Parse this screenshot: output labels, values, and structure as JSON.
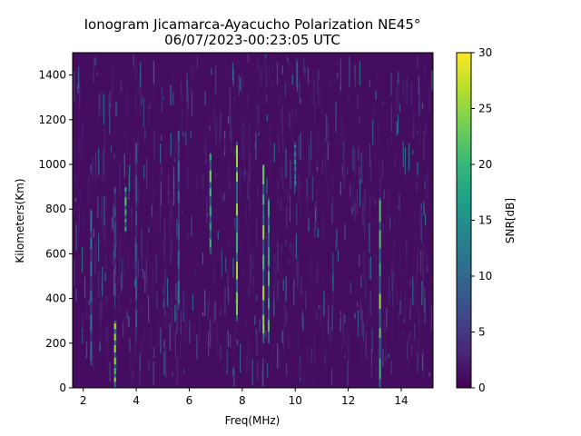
{
  "chart_data": {
    "type": "heatmap",
    "title": "Ionogram Jicamarca-Ayacucho Polarization NE45°",
    "subtitle": "06/07/2023-00:23:05 UTC",
    "xlabel": "Freq(MHz)",
    "ylabel": "Kilometers(Km)",
    "xlim": [
      1.6,
      15.2
    ],
    "ylim": [
      0,
      1500
    ],
    "x_ticks": [
      2,
      4,
      6,
      8,
      10,
      12,
      14
    ],
    "y_ticks": [
      0,
      200,
      400,
      600,
      800,
      1000,
      1200,
      1400
    ],
    "colormap": "viridis",
    "colorbar": {
      "label": "SNR[dB]",
      "range": [
        0,
        30
      ],
      "ticks": [
        0,
        5,
        10,
        15,
        20,
        25,
        30
      ]
    },
    "background_snr_db": 1,
    "streaks": [
      {
        "freq": 2.3,
        "from_km": 100,
        "to_km": 800,
        "snr_db": 13
      },
      {
        "freq": 3.2,
        "from_km": 0,
        "to_km": 300,
        "snr_db": 28
      },
      {
        "freq": 3.2,
        "from_km": 400,
        "to_km": 900,
        "snr_db": 8
      },
      {
        "freq": 3.6,
        "from_km": 700,
        "to_km": 900,
        "snr_db": 22
      },
      {
        "freq": 4.0,
        "from_km": 200,
        "to_km": 1100,
        "snr_db": 8
      },
      {
        "freq": 5.6,
        "from_km": 350,
        "to_km": 1150,
        "snr_db": 12
      },
      {
        "freq": 6.8,
        "from_km": 600,
        "to_km": 1050,
        "snr_db": 24
      },
      {
        "freq": 7.8,
        "from_km": 300,
        "to_km": 1100,
        "snr_db": 26
      },
      {
        "freq": 8.8,
        "from_km": 200,
        "to_km": 1000,
        "snr_db": 26
      },
      {
        "freq": 9.0,
        "from_km": 200,
        "to_km": 850,
        "snr_db": 24
      },
      {
        "freq": 10.0,
        "from_km": 900,
        "to_km": 1100,
        "snr_db": 16
      },
      {
        "freq": 13.2,
        "from_km": 0,
        "to_km": 850,
        "snr_db": 26
      }
    ]
  },
  "colors": {
    "viridis_stops": [
      "#440154",
      "#482878",
      "#3e4a89",
      "#31688e",
      "#26828e",
      "#1f9e89",
      "#35b779",
      "#6ece58",
      "#b5de2b",
      "#fde725"
    ],
    "axis": "#000000"
  }
}
